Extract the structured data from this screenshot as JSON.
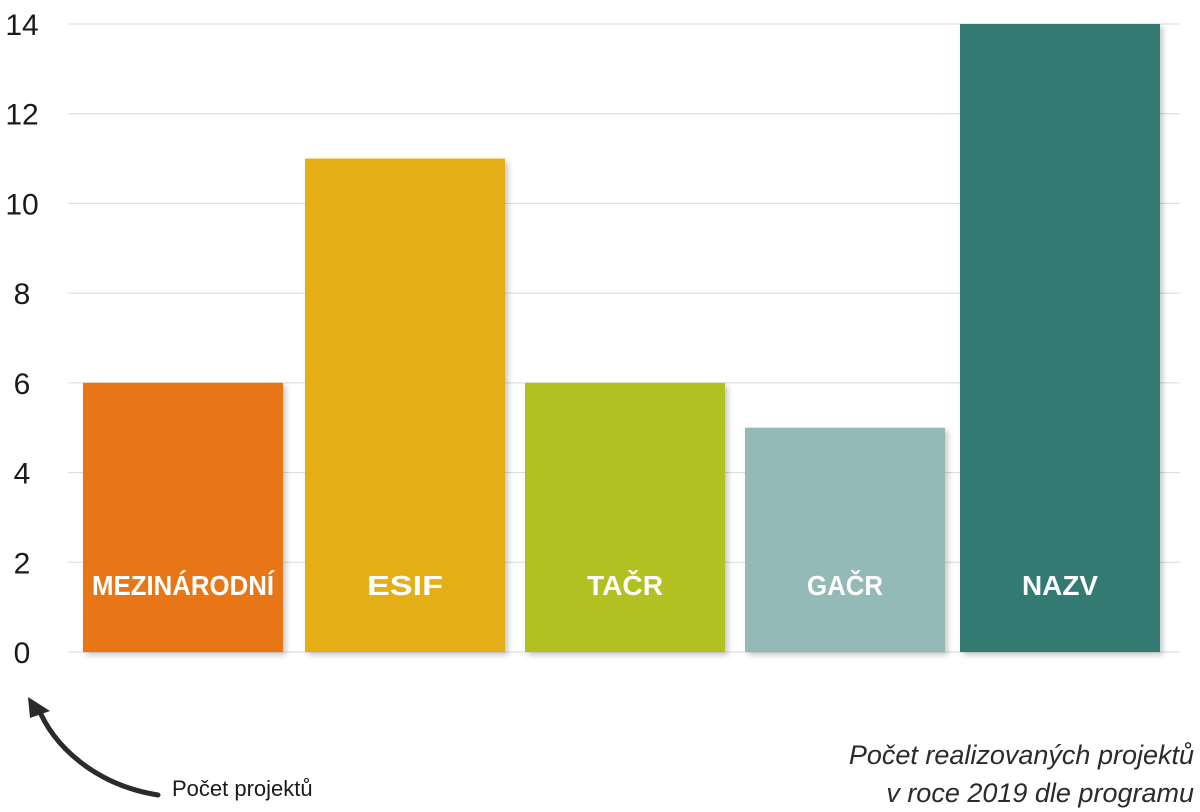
{
  "chart_data": {
    "type": "bar",
    "categories": [
      "MEZINÁRODNÍ",
      "ESIF",
      "TAČR",
      "GAČR",
      "NAZV"
    ],
    "values": [
      6,
      11,
      6,
      5,
      14
    ],
    "colors": [
      "#e87612",
      "#e3ae12",
      "#b3c023",
      "#93bab7",
      "#317a72"
    ],
    "ylim": [
      0,
      14
    ],
    "yticks": [
      0,
      2,
      4,
      6,
      8,
      10,
      12,
      14
    ],
    "grid": true,
    "category_labels_inside_bars": true
  },
  "caption": {
    "line1": "Počet realizovaných projektů",
    "line2": "v roce 2019 dle programu"
  },
  "axis_note": "Počet projektů",
  "arrow_icon": "curved-arrow-icon"
}
